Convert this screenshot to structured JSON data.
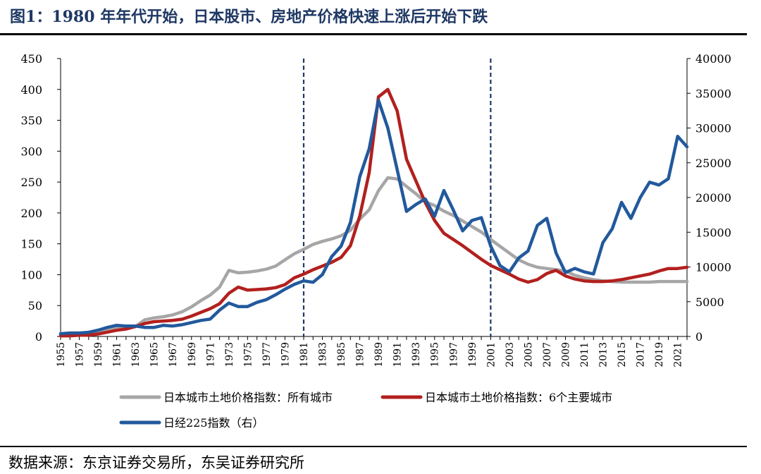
{
  "title": "图1：1980 年年代开始，日本股市、房地产价格快速上涨后开始下跌",
  "source": "数据来源：东京证券交易所，东吴证券研究所",
  "chart_data": {
    "type": "line",
    "x": [
      1955,
      1956,
      1957,
      1958,
      1959,
      1960,
      1961,
      1962,
      1963,
      1964,
      1965,
      1966,
      1967,
      1968,
      1969,
      1970,
      1971,
      1972,
      1973,
      1974,
      1975,
      1976,
      1977,
      1978,
      1979,
      1980,
      1981,
      1982,
      1983,
      1984,
      1985,
      1986,
      1987,
      1988,
      1989,
      1990,
      1991,
      1992,
      1993,
      1994,
      1995,
      1996,
      1997,
      1998,
      1999,
      2000,
      2001,
      2002,
      2003,
      2004,
      2005,
      2006,
      2007,
      2008,
      2009,
      2010,
      2011,
      2012,
      2013,
      2014,
      2015,
      2016,
      2017,
      2018,
      2019,
      2020,
      2021,
      2022
    ],
    "x_tick_labels": [
      "1955",
      "1957",
      "1959",
      "1961",
      "1963",
      "1965",
      "1967",
      "1969",
      "1971",
      "1973",
      "1975",
      "1977",
      "1979",
      "1981",
      "1983",
      "1985",
      "1987",
      "1989",
      "1991",
      "1993",
      "1995",
      "1997",
      "1999",
      "2001",
      "2003",
      "2005",
      "2007",
      "2009",
      "2011",
      "2013",
      "2015",
      "2017",
      "2019",
      "2021"
    ],
    "left_axis": {
      "range": [
        0,
        450
      ],
      "ticks": [
        "0",
        "50",
        "100",
        "150",
        "200",
        "250",
        "300",
        "350",
        "400",
        "450"
      ]
    },
    "right_axis": {
      "range": [
        0,
        40000
      ],
      "ticks": [
        "0",
        "5000",
        "10000",
        "15000",
        "20000",
        "25000",
        "30000",
        "35000",
        "40000"
      ]
    },
    "vlines": [
      1981,
      2001
    ],
    "series": [
      {
        "name": "日本城市土地价格指数：所有城市",
        "axis": "left",
        "color": "#a6a6a6",
        "values": [
          3,
          4,
          5,
          6,
          8,
          11,
          15,
          16,
          16,
          27,
          30,
          32,
          35,
          40,
          48,
          58,
          67,
          80,
          107,
          103,
          104,
          106,
          109,
          114,
          124,
          134,
          141,
          149,
          154,
          158,
          163,
          172,
          190,
          205,
          236,
          257,
          255,
          243,
          231,
          218,
          212,
          203,
          196,
          187,
          178,
          169,
          157,
          146,
          135,
          124,
          117,
          112,
          110,
          108,
          106,
          99,
          95,
          92,
          90,
          89,
          88,
          88,
          88,
          88,
          89,
          89,
          89,
          89
        ]
      },
      {
        "name": "日本城市土地价格指数：6个主要城市",
        "axis": "left",
        "color": "#b2201e",
        "values": [
          1,
          1,
          2,
          2,
          4,
          7,
          10,
          12,
          16,
          21,
          24,
          25,
          26,
          28,
          33,
          39,
          45,
          53,
          70,
          80,
          75,
          76,
          77,
          79,
          84,
          95,
          101,
          108,
          114,
          120,
          128,
          147,
          195,
          265,
          388,
          400,
          365,
          287,
          252,
          217,
          188,
          167,
          157,
          147,
          136,
          125,
          115,
          108,
          101,
          93,
          88,
          92,
          102,
          107,
          98,
          93,
          90,
          89,
          89,
          90,
          92,
          95,
          98,
          101,
          106,
          110,
          110,
          112
        ]
      },
      {
        "name": "日经225指数（右）",
        "axis": "right",
        "color": "#22599c",
        "values": [
          400,
          500,
          500,
          600,
          900,
          1300,
          1600,
          1500,
          1500,
          1300,
          1300,
          1600,
          1500,
          1700,
          2000,
          2300,
          2500,
          3800,
          4800,
          4300,
          4300,
          4900,
          5300,
          6000,
          6800,
          7500,
          8000,
          7800,
          8900,
          11500,
          13000,
          16400,
          23000,
          27000,
          34000,
          30000,
          24000,
          18000,
          19000,
          19800,
          17300,
          21000,
          18200,
          15200,
          16700,
          17100,
          13000,
          10200,
          9300,
          11300,
          12300,
          16000,
          17000,
          12000,
          9200,
          9800,
          9300,
          9000,
          13500,
          15500,
          19300,
          17000,
          20000,
          22200,
          21800,
          22700,
          28800,
          27300
        ]
      }
    ]
  }
}
